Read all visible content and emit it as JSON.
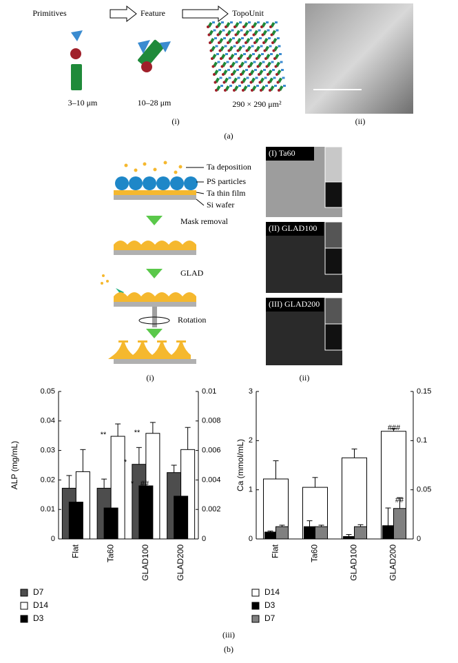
{
  "figure": {
    "a": {
      "steps": [
        "Primitives",
        "Feature",
        "TopoUnit"
      ],
      "sizes": [
        "3–10 μm",
        "10–28 μm",
        "290 × 290 μm²"
      ],
      "panels": [
        "(i)",
        "(ii)"
      ],
      "label": "(a)"
    },
    "b": {
      "labels": [
        "Ta deposition",
        "PS particles",
        "Ta thin film",
        "Si wafer"
      ],
      "steps": [
        "Mask removal",
        "GLAD",
        "Rotation"
      ],
      "images": [
        "(I) Ta60",
        "(II) GLAD100",
        "(III) GLAD200"
      ],
      "panels": [
        "(i)",
        "(ii)",
        "(iii)"
      ],
      "label": "(b)"
    }
  },
  "chart_data": [
    {
      "type": "bar",
      "ylabel": "ALP (mg/mL)",
      "categories": [
        "Flat",
        "Ta60",
        "GLAD100",
        "GLAD200"
      ],
      "ylim": [
        0,
        0.05
      ],
      "yticks": [
        0,
        0.01,
        0.02,
        0.03,
        0.04,
        0.05
      ],
      "y2lim": [
        0,
        0.01
      ],
      "y2ticks": [
        0,
        0.002,
        0.004,
        0.006,
        0.008,
        0.01
      ],
      "series": [
        {
          "name": "D7",
          "color": "#4d4d4d",
          "values": [
            0.0172,
            0.0172,
            0.0253,
            0.0225
          ],
          "errors": [
            0.0043,
            0.0031,
            0.0057,
            0.0025
          ]
        },
        {
          "name": "D14",
          "color": "#ffffff",
          "values": [
            0.0228,
            0.0348,
            0.0358,
            0.0303
          ],
          "errors": [
            0.0075,
            0.0042,
            0.0037,
            0.0075
          ]
        },
        {
          "name": "D3",
          "color": "#000000",
          "axis": "y2",
          "values": [
            0.0025,
            0.0021,
            0.0036,
            0.0029
          ]
        }
      ],
      "annotations": [
        "**",
        "**",
        "*",
        "*",
        "##"
      ]
    },
    {
      "type": "bar",
      "ylabel": "Ca (mmol/mL)",
      "categories": [
        "Flat",
        "Ta60",
        "GLAD100",
        "GLAD200"
      ],
      "ylim": [
        0,
        3
      ],
      "yticks": [
        0,
        1,
        2,
        3
      ],
      "y2lim": [
        0,
        0.15
      ],
      "y2ticks": [
        0,
        0.05,
        0.1,
        0.15
      ],
      "series": [
        {
          "name": "D14",
          "color": "#ffffff",
          "values": [
            1.22,
            1.05,
            1.65,
            2.19
          ],
          "errors": [
            0.37,
            0.2,
            0.18,
            0.05
          ]
        },
        {
          "name": "D3",
          "color": "#000000",
          "axis": "y2",
          "values": [
            0.007,
            0.0125,
            0.0025,
            0.0135
          ],
          "errors": [
            0.001,
            0.006,
            0.002,
            0.018
          ]
        },
        {
          "name": "D7",
          "color": "#808080",
          "axis": "y2",
          "values": [
            0.0125,
            0.0125,
            0.0125,
            0.031
          ],
          "errors": [
            0.0015,
            0.0015,
            0.002,
            0.011
          ]
        }
      ],
      "annotations": [
        "###",
        "##"
      ]
    }
  ]
}
